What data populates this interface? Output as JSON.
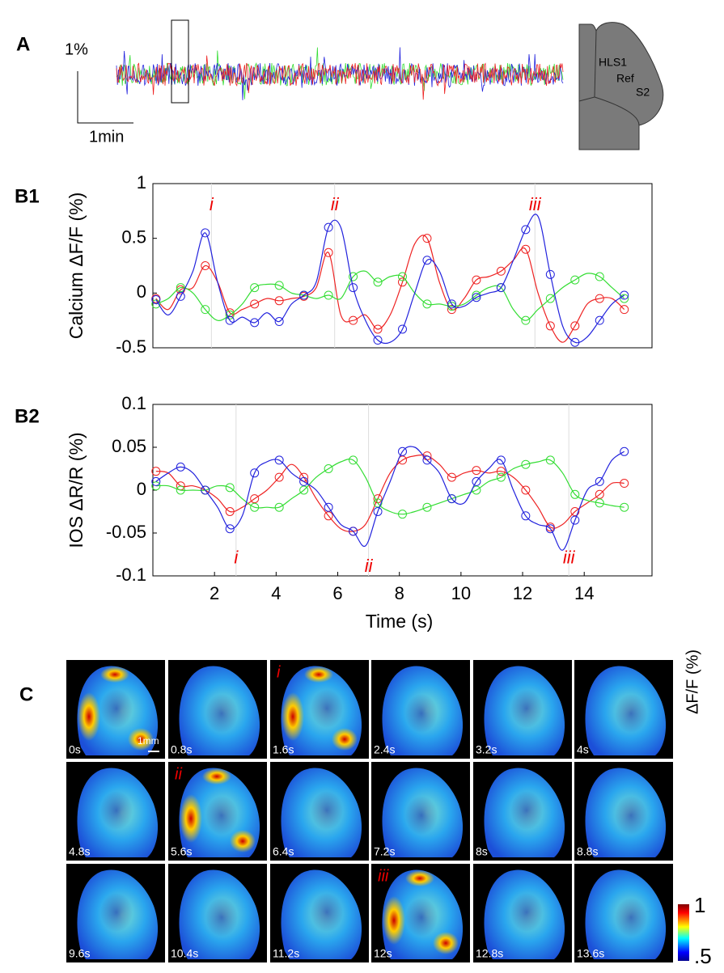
{
  "panel_labels": [
    "A",
    "B1",
    "B2",
    "C"
  ],
  "panel_a": {
    "scale_y": "1%",
    "scale_x": "1min",
    "traces": [
      {
        "name": "HLS1",
        "color": "#ee2222"
      },
      {
        "name": "Ref",
        "color": "#33dd33"
      },
      {
        "name": "S2",
        "color": "#2222dd"
      }
    ]
  },
  "chart_data": [
    {
      "type": "line",
      "ylabel": "Calcium ΔF/F (%)",
      "xlim": [
        0,
        16.2
      ],
      "ylim": [
        -0.5,
        1
      ],
      "yticks": [
        -0.5,
        0,
        0.5,
        1
      ],
      "x": [
        0.1,
        0.5,
        0.9,
        1.3,
        1.7,
        2.1,
        2.5,
        2.9,
        3.3,
        3.7,
        4.1,
        4.5,
        4.9,
        5.3,
        5.7,
        6.1,
        6.5,
        6.9,
        7.3,
        7.7,
        8.1,
        8.5,
        8.9,
        9.3,
        9.7,
        10.1,
        10.5,
        10.9,
        11.3,
        11.7,
        12.1,
        12.5,
        12.9,
        13.3,
        13.7,
        14.1,
        14.5,
        14.9,
        15.3
      ],
      "series": [
        {
          "color": "#ee2222",
          "values": [
            -0.05,
            -0.15,
            0.03,
            0.05,
            0.25,
            0.1,
            -0.18,
            -0.15,
            -0.1,
            -0.05,
            -0.07,
            -0.05,
            -0.03,
            0.05,
            0.37,
            -0.2,
            -0.25,
            -0.2,
            -0.33,
            -0.2,
            0.1,
            0.45,
            0.5,
            0.1,
            -0.15,
            -0.05,
            0.12,
            0.15,
            0.2,
            0.3,
            0.4,
            0.0,
            -0.3,
            -0.45,
            -0.3,
            -0.1,
            -0.05,
            -0.05,
            -0.15
          ]
        },
        {
          "color": "#33dd33",
          "values": [
            -0.1,
            -0.05,
            0.05,
            0.0,
            -0.15,
            -0.25,
            -0.2,
            -0.1,
            0.05,
            0.08,
            0.07,
            0.0,
            -0.02,
            -0.05,
            -0.02,
            -0.05,
            0.15,
            0.2,
            0.1,
            0.15,
            0.15,
            0.0,
            -0.1,
            -0.1,
            -0.12,
            -0.1,
            -0.02,
            0.05,
            0.05,
            -0.15,
            -0.25,
            -0.15,
            -0.05,
            0.05,
            0.12,
            0.18,
            0.15,
            0.05,
            -0.05
          ]
        },
        {
          "color": "#2222dd",
          "values": [
            -0.06,
            -0.2,
            -0.03,
            0.2,
            0.55,
            0.1,
            -0.25,
            -0.22,
            -0.27,
            -0.18,
            -0.26,
            -0.1,
            -0.02,
            0.1,
            0.6,
            0.6,
            0.05,
            -0.25,
            -0.43,
            -0.45,
            -0.33,
            0.0,
            0.3,
            0.2,
            -0.1,
            -0.12,
            -0.04,
            0.0,
            0.05,
            0.3,
            0.58,
            0.7,
            0.17,
            -0.3,
            -0.45,
            -0.4,
            -0.25,
            -0.1,
            -0.02
          ]
        }
      ],
      "annotations": [
        {
          "text": "i",
          "x": 1.9,
          "y": 0.8
        },
        {
          "text": "ii",
          "x": 5.9,
          "y": 0.8
        },
        {
          "text": "iii",
          "x": 12.4,
          "y": 0.8
        }
      ]
    },
    {
      "type": "line",
      "ylabel": "IOS ΔR/R (%)",
      "xlabel": "Time (s)",
      "xlim": [
        0,
        16.2
      ],
      "ylim": [
        -0.1,
        0.1
      ],
      "xticks": [
        2,
        4,
        6,
        8,
        10,
        12,
        14
      ],
      "yticks": [
        -0.1,
        -0.05,
        0,
        0.05,
        0.1
      ],
      "x": [
        0.1,
        0.5,
        0.9,
        1.3,
        1.7,
        2.1,
        2.5,
        2.9,
        3.3,
        3.7,
        4.1,
        4.5,
        4.9,
        5.3,
        5.7,
        6.1,
        6.5,
        6.9,
        7.3,
        7.7,
        8.1,
        8.5,
        8.9,
        9.3,
        9.7,
        10.1,
        10.5,
        10.9,
        11.3,
        11.7,
        12.1,
        12.5,
        12.9,
        13.3,
        13.7,
        14.1,
        14.5,
        14.9,
        15.3
      ],
      "series": [
        {
          "color": "#ee2222",
          "values": [
            0.022,
            0.02,
            0.005,
            0.005,
            0.0,
            -0.01,
            -0.025,
            -0.02,
            -0.01,
            0.0,
            0.015,
            0.03,
            0.015,
            -0.01,
            -0.03,
            -0.045,
            -0.048,
            -0.04,
            -0.01,
            0.02,
            0.035,
            0.04,
            0.04,
            0.03,
            0.015,
            0.02,
            0.023,
            0.02,
            0.022,
            0.015,
            0.0,
            -0.02,
            -0.043,
            -0.04,
            -0.025,
            -0.015,
            -0.005,
            0.008,
            0.008
          ]
        },
        {
          "color": "#33dd33",
          "values": [
            0.005,
            0.005,
            0.0,
            0.0,
            0.0,
            0.005,
            0.003,
            -0.01,
            -0.02,
            -0.02,
            -0.02,
            -0.01,
            0.0,
            0.015,
            0.025,
            0.033,
            0.035,
            0.015,
            -0.015,
            -0.025,
            -0.028,
            -0.025,
            -0.02,
            -0.015,
            -0.01,
            -0.005,
            0.0,
            0.01,
            0.015,
            0.025,
            0.03,
            0.033,
            0.035,
            0.02,
            -0.005,
            -0.012,
            -0.015,
            -0.018,
            -0.02
          ]
        },
        {
          "color": "#2222dd",
          "values": [
            0.01,
            0.02,
            0.027,
            0.02,
            0.0,
            -0.02,
            -0.045,
            -0.03,
            0.02,
            0.033,
            0.035,
            0.02,
            0.01,
            0.0,
            -0.02,
            -0.04,
            -0.048,
            -0.065,
            -0.025,
            0.01,
            0.045,
            0.05,
            0.035,
            0.02,
            -0.01,
            -0.015,
            0.01,
            0.025,
            0.035,
            0.0,
            -0.03,
            -0.04,
            -0.045,
            -0.07,
            -0.035,
            0.0,
            0.01,
            0.035,
            0.045
          ]
        }
      ],
      "annotations": [
        {
          "text": "i",
          "x": 2.7,
          "y": -0.08
        },
        {
          "text": "ii",
          "x": 7.0,
          "y": -0.09
        },
        {
          "text": "iii",
          "x": 13.5,
          "y": -0.08
        }
      ]
    }
  ],
  "panel_c": {
    "frames": [
      {
        "time": "0s"
      },
      {
        "time": "0.8s"
      },
      {
        "time": "1.6s",
        "marker": "i"
      },
      {
        "time": "2.4s"
      },
      {
        "time": "3.2s"
      },
      {
        "time": "4s"
      },
      {
        "time": "4.8s"
      },
      {
        "time": "5.6s",
        "marker": "ii"
      },
      {
        "time": "6.4s"
      },
      {
        "time": "7.2s"
      },
      {
        "time": "8s"
      },
      {
        "time": "8.8s"
      },
      {
        "time": "9.6s"
      },
      {
        "time": "10.4s"
      },
      {
        "time": "11.2s"
      },
      {
        "time": "12s",
        "marker": "iii"
      },
      {
        "time": "12.8s"
      },
      {
        "time": "13.6s"
      }
    ],
    "scale_bar": "1mm",
    "colorbar": {
      "label": "ΔF/F (%)",
      "range": [
        0.5,
        1
      ],
      "ticks": [
        {
          "value": 0.5,
          "label": ".5"
        },
        1
      ]
    }
  }
}
